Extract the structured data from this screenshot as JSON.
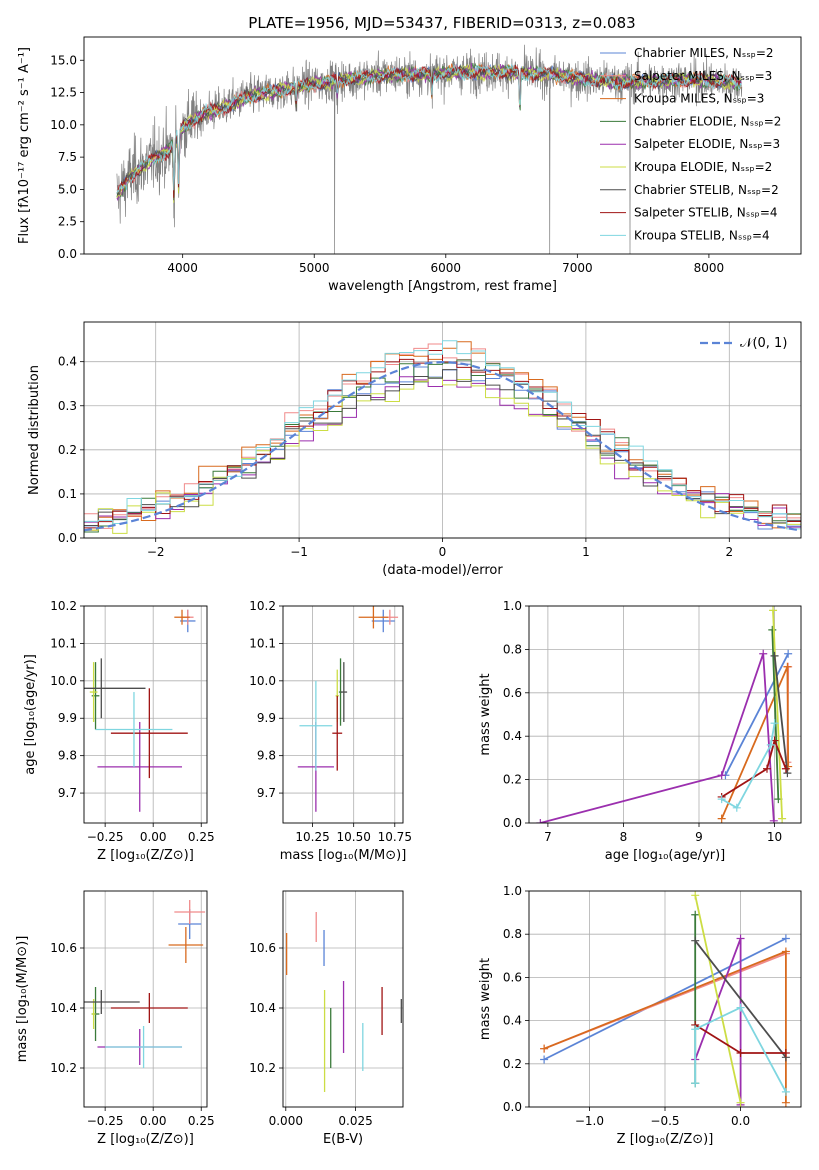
{
  "figure": {
    "title": "PLATE=1956, MJD=53437, FIBERID=0313, z=0.083"
  },
  "colors": {
    "chabrier_miles": "#5b84d6",
    "salpeter_miles": "#f08a8a",
    "kroupa_miles": "#d86a1e",
    "chabrier_elodie": "#3a7a3a",
    "salpeter_elodie": "#9b2fae",
    "kroupa_elodie": "#ccdd44",
    "chabrier_stelib": "#4d4d4d",
    "salpeter_stelib": "#a01414",
    "kroupa_stelib": "#7fd6e0",
    "data": "#808080",
    "normal": "#5b84d6"
  },
  "chart_data": [
    {
      "id": "spectrum",
      "type": "line",
      "xlabel": "wavelength [Angstrom, rest frame]",
      "ylabel": "Flux [fλ10⁻¹⁷ erg cm⁻² s⁻¹ A⁻¹]",
      "xlim": [
        3250,
        8700
      ],
      "ylim": [
        0,
        16.8
      ],
      "xticks": [
        4000,
        5000,
        6000,
        7000,
        8000
      ],
      "yticks": [
        0.0,
        2.5,
        5.0,
        7.5,
        10.0,
        12.5,
        15.0
      ],
      "grid": false,
      "legend_loc": "right",
      "legend": [
        "Chabrier MILES, N_SSP=2",
        "Salpeter MILES, N_SSP=3",
        "Kroupa MILES, N_SSP=3",
        "Chabrier ELODIE, N_SSP=2",
        "Salpeter ELODIE, N_SSP=3",
        "Kroupa ELODIE, N_SSP=2",
        "Chabrier STELIB, N_SSP=2",
        "Salpeter STELIB, N_SSP=4",
        "Kroupa STELIB, N_SSP=4"
      ],
      "continuum": {
        "x": [
          3500,
          3600,
          3700,
          3800,
          3900,
          4000,
          4100,
          4200,
          4300,
          4400,
          4500,
          4600,
          4700,
          4800,
          4900,
          5000,
          5100,
          5200,
          5400,
          5600,
          5800,
          6000,
          6200,
          6400,
          6600,
          6800,
          7000,
          7200,
          7400,
          7600,
          7800,
          8000,
          8200
        ],
        "y": [
          4.5,
          6.0,
          6.8,
          7.5,
          8.0,
          9.8,
          10.5,
          11.0,
          11.3,
          11.8,
          12.2,
          12.4,
          12.6,
          12.8,
          13.0,
          13.2,
          13.3,
          13.5,
          13.7,
          13.9,
          13.9,
          14.0,
          14.1,
          14.1,
          14.0,
          13.9,
          13.6,
          13.4,
          13.3,
          13.4,
          13.5,
          13.4,
          13.3
        ]
      },
      "features": [
        {
          "x": 3934,
          "y": 4.0
        },
        {
          "x": 3969,
          "y": 5.0
        },
        {
          "x": 4862,
          "y": 11.5
        },
        {
          "x": 5175,
          "y": 12.3
        },
        {
          "x": 5893,
          "y": 12.5
        },
        {
          "x": 6563,
          "y": 11.0
        }
      ],
      "gaps": [
        {
          "x": 5155
        },
        {
          "x": 6790
        },
        {
          "x": 7400
        }
      ]
    },
    {
      "id": "residuals",
      "type": "histogram",
      "xlabel": "(data-model)/error",
      "ylabel": "Normed distribution",
      "xlim": [
        -2.5,
        2.5
      ],
      "ylim": [
        0,
        0.49
      ],
      "xticks": [
        -2,
        -1,
        0,
        1,
        2
      ],
      "yticks": [
        0.0,
        0.1,
        0.2,
        0.3,
        0.4
      ],
      "grid": true,
      "legend_loc": "upper right",
      "legend": [
        "𝒩(0, 1)"
      ],
      "bin_width": 0.1,
      "reference_curve": "normal(0,1)"
    },
    {
      "id": "Z-age",
      "type": "errorbar",
      "xlabel": "Z [log₁₀(Z/Z⊙)]",
      "ylabel": "age  [log₁₀(age/yr)]",
      "xlim": [
        -0.36,
        0.28
      ],
      "ylim": [
        9.62,
        10.2
      ],
      "xticks": [
        -0.25,
        0.0,
        0.25
      ],
      "xticklabels": [
        "−0.25",
        "0.00",
        "0.25"
      ],
      "yticks": [
        9.7,
        9.8,
        9.9,
        10.0,
        10.1,
        10.2
      ],
      "grid": true,
      "points": [
        {
          "model": "chabrier_miles",
          "x": 0.18,
          "y": 10.16,
          "xerr": 0.04,
          "yerr": 0.03
        },
        {
          "model": "salpeter_miles",
          "x": 0.18,
          "y": 10.17,
          "xerr": 0.03,
          "yerr": 0.02
        },
        {
          "model": "kroupa_miles",
          "x": 0.15,
          "y": 10.17,
          "xerr": 0.04,
          "yerr": 0.02
        },
        {
          "model": "chabrier_elodie",
          "x": -0.3,
          "y": 9.96,
          "xerr": 0.02,
          "yerr": 0.09
        },
        {
          "model": "salpeter_elodie",
          "x": -0.07,
          "y": 9.77,
          "xerr": 0.22,
          "yerr": 0.12
        },
        {
          "model": "kroupa_elodie",
          "x": -0.31,
          "y": 9.97,
          "xerr": 0.02,
          "yerr": 0.08
        },
        {
          "model": "chabrier_stelib",
          "x": -0.27,
          "y": 9.98,
          "xerr": 0.23,
          "yerr": 0.08
        },
        {
          "model": "salpeter_stelib",
          "x": -0.02,
          "y": 9.86,
          "xerr": 0.2,
          "yerr": 0.12
        },
        {
          "model": "kroupa_stelib",
          "x": -0.1,
          "y": 9.87,
          "xerr": 0.2,
          "yerr": 0.1
        }
      ]
    },
    {
      "id": "mass-age",
      "type": "errorbar",
      "xlabel": "mass [log₁₀(M/M⊙)]",
      "ylabel": "",
      "xlim": [
        10.07,
        10.8
      ],
      "ylim": [
        9.62,
        10.2
      ],
      "xticks": [
        10.25,
        10.5,
        10.75
      ],
      "xticklabels": [
        "10.25",
        "10.50",
        "10.75"
      ],
      "yticks": [
        9.7,
        9.8,
        9.9,
        10.0,
        10.1,
        10.2
      ],
      "grid": true,
      "points": [
        {
          "model": "chabrier_miles",
          "x": 10.68,
          "y": 10.16,
          "xerr": 0.07,
          "yerr": 0.03
        },
        {
          "model": "salpeter_miles",
          "x": 10.72,
          "y": 10.17,
          "xerr": 0.05,
          "yerr": 0.02
        },
        {
          "model": "kroupa_miles",
          "x": 10.62,
          "y": 10.17,
          "xerr": 0.09,
          "yerr": 0.03
        },
        {
          "model": "chabrier_elodie",
          "x": 10.42,
          "y": 9.97,
          "xerr": 0.01,
          "yerr": 0.09
        },
        {
          "model": "salpeter_elodie",
          "x": 10.27,
          "y": 9.77,
          "xerr": 0.11,
          "yerr": 0.12
        },
        {
          "model": "kroupa_elodie",
          "x": 10.4,
          "y": 9.96,
          "xerr": 0.01,
          "yerr": 0.07
        },
        {
          "model": "chabrier_stelib",
          "x": 10.44,
          "y": 9.97,
          "xerr": 0.02,
          "yerr": 0.08
        },
        {
          "model": "salpeter_stelib",
          "x": 10.4,
          "y": 9.86,
          "xerr": 0.03,
          "yerr": 0.1
        },
        {
          "model": "kroupa_stelib",
          "x": 10.27,
          "y": 9.88,
          "xerr": 0.1,
          "yerr": 0.12
        }
      ]
    },
    {
      "id": "age-weight",
      "type": "line",
      "xlabel": "age  [log₁₀(age/yr)]",
      "ylabel": "mass weight",
      "xlim": [
        6.75,
        10.35
      ],
      "ylim": [
        0,
        1.0
      ],
      "xticks": [
        7,
        8,
        9,
        10
      ],
      "yticks": [
        0.0,
        0.2,
        0.4,
        0.6,
        0.8,
        1.0
      ],
      "grid": true,
      "series": [
        {
          "model": "chabrier_miles",
          "x": [
            9.35,
            10.18
          ],
          "y": [
            0.22,
            0.78
          ]
        },
        {
          "model": "salpeter_miles",
          "x": [
            10.17,
            10.18
          ],
          "y": [
            0.28,
            0.72
          ]
        },
        {
          "model": "kroupa_miles",
          "x": [
            9.3,
            10.17,
            10.18
          ],
          "y": [
            0.02,
            0.72,
            0.26
          ]
        },
        {
          "model": "chabrier_elodie",
          "x": [
            9.97,
            10.05
          ],
          "y": [
            0.89,
            0.11
          ]
        },
        {
          "model": "salpeter_elodie",
          "x": [
            6.9,
            9.3,
            9.85,
            9.99
          ],
          "y": [
            0.0,
            0.22,
            0.78,
            0.01
          ]
        },
        {
          "model": "kroupa_elodie",
          "x": [
            9.98,
            10.1
          ],
          "y": [
            0.98,
            0.02
          ]
        },
        {
          "model": "chabrier_stelib",
          "x": [
            10.0,
            10.17
          ],
          "y": [
            0.77,
            0.23
          ]
        },
        {
          "model": "salpeter_stelib",
          "x": [
            9.3,
            9.9,
            10.0,
            10.15
          ],
          "y": [
            0.12,
            0.25,
            0.38,
            0.25
          ]
        },
        {
          "model": "kroupa_stelib",
          "x": [
            9.3,
            9.5,
            9.95,
            10.0
          ],
          "y": [
            0.11,
            0.07,
            0.36,
            0.46
          ]
        }
      ]
    },
    {
      "id": "Z-mass",
      "type": "errorbar",
      "xlabel": "Z [log₁₀(Z/Z⊙)]",
      "ylabel": "mass [log₁₀(M/M⊙)]",
      "xlim": [
        -0.36,
        0.28
      ],
      "ylim": [
        10.07,
        10.79
      ],
      "xticks": [
        -0.25,
        0.0,
        0.25
      ],
      "xticklabels": [
        "−0.25",
        "0.00",
        "0.25"
      ],
      "yticks": [
        10.2,
        10.4,
        10.6
      ],
      "grid": true,
      "points": [
        {
          "model": "chabrier_miles",
          "x": 0.19,
          "y": 10.68,
          "xerr": 0.06,
          "yerr": 0.05
        },
        {
          "model": "salpeter_miles",
          "x": 0.19,
          "y": 10.72,
          "xerr": 0.08,
          "yerr": 0.04
        },
        {
          "model": "kroupa_miles",
          "x": 0.17,
          "y": 10.61,
          "xerr": 0.09,
          "yerr": 0.06
        },
        {
          "model": "chabrier_elodie",
          "x": -0.3,
          "y": 10.38,
          "xerr": 0.02,
          "yerr": 0.09
        },
        {
          "model": "salpeter_elodie",
          "x": -0.07,
          "y": 10.27,
          "xerr": 0.22,
          "yerr": 0.06
        },
        {
          "model": "kroupa_elodie",
          "x": -0.31,
          "y": 10.38,
          "xerr": 0.01,
          "yerr": 0.05
        },
        {
          "model": "chabrier_stelib",
          "x": -0.27,
          "y": 10.42,
          "xerr": 0.2,
          "yerr": 0.04
        },
        {
          "model": "salpeter_stelib",
          "x": -0.02,
          "y": 10.4,
          "xerr": 0.2,
          "yerr": 0.05
        },
        {
          "model": "kroupa_stelib",
          "x": -0.05,
          "y": 10.27,
          "xerr": 0.2,
          "yerr": 0.07
        }
      ]
    },
    {
      "id": "EBV-mass",
      "type": "errorbar",
      "xlabel": "E(B-V)",
      "ylabel": "",
      "xlim": [
        -0.001,
        0.042
      ],
      "ylim": [
        10.07,
        10.79
      ],
      "xticks": [
        0.0,
        0.025
      ],
      "xticklabels": [
        "0.000",
        "0.025"
      ],
      "yticks": [
        10.2,
        10.4,
        10.6
      ],
      "grid": true,
      "points": [
        {
          "model": "chabrier_miles",
          "x": 0.0137,
          "y": 10.6,
          "xerr": 0,
          "yerr": 0.06
        },
        {
          "model": "salpeter_miles",
          "x": 0.0109,
          "y": 10.67,
          "xerr": 0,
          "yerr": 0.05
        },
        {
          "model": "kroupa_miles",
          "x": 0.0003,
          "y": 10.58,
          "xerr": 0,
          "yerr": 0.07
        },
        {
          "model": "chabrier_elodie",
          "x": 0.0161,
          "y": 10.3,
          "xerr": 0,
          "yerr": 0.1
        },
        {
          "model": "salpeter_elodie",
          "x": 0.0207,
          "y": 10.37,
          "xerr": 0,
          "yerr": 0.12
        },
        {
          "model": "kroupa_elodie",
          "x": 0.0139,
          "y": 10.29,
          "xerr": 0,
          "yerr": 0.17
        },
        {
          "model": "chabrier_stelib",
          "x": 0.0414,
          "y": 10.39,
          "xerr": 0,
          "yerr": 0.04
        },
        {
          "model": "salpeter_stelib",
          "x": 0.0345,
          "y": 10.39,
          "xerr": 0,
          "yerr": 0.08
        },
        {
          "model": "kroupa_stelib",
          "x": 0.0276,
          "y": 10.27,
          "xerr": 0,
          "yerr": 0.08
        }
      ]
    },
    {
      "id": "Z-weight",
      "type": "line",
      "xlabel": "Z [log₁₀(Z/Z⊙)]",
      "ylabel": "mass weight",
      "xlim": [
        -1.4,
        0.4
      ],
      "ylim": [
        0,
        1.0
      ],
      "xticks": [
        -1.0,
        -0.5,
        0.0
      ],
      "xticklabels": [
        "−1.0",
        "−0.5",
        "0.0"
      ],
      "yticks": [
        0.0,
        0.2,
        0.4,
        0.6,
        0.8,
        1.0
      ],
      "grid": true,
      "series": [
        {
          "model": "chabrier_miles",
          "x": [
            -1.3,
            0.3
          ],
          "y": [
            0.22,
            0.78
          ]
        },
        {
          "model": "salpeter_miles",
          "x": [
            -1.3,
            0.3
          ],
          "y": [
            0.27,
            0.71
          ]
        },
        {
          "model": "kroupa_miles",
          "x": [
            -1.3,
            0.3,
            0.3
          ],
          "y": [
            0.27,
            0.72,
            0.02
          ]
        },
        {
          "model": "chabrier_elodie",
          "x": [
            -0.3,
            -0.3
          ],
          "y": [
            0.89,
            0.11
          ]
        },
        {
          "model": "salpeter_elodie",
          "x": [
            -0.3,
            0.0,
            0.0
          ],
          "y": [
            0.22,
            0.78,
            0.01
          ]
        },
        {
          "model": "kroupa_elodie",
          "x": [
            -0.3,
            0.0
          ],
          "y": [
            0.98,
            0.02
          ]
        },
        {
          "model": "chabrier_stelib",
          "x": [
            -0.3,
            0.3
          ],
          "y": [
            0.77,
            0.23
          ]
        },
        {
          "model": "salpeter_stelib",
          "x": [
            -0.3,
            0.0,
            0.3
          ],
          "y": [
            0.38,
            0.25,
            0.25
          ]
        },
        {
          "model": "kroupa_stelib",
          "x": [
            -0.3,
            -0.3,
            0.0,
            0.3
          ],
          "y": [
            0.11,
            0.36,
            0.46,
            0.07
          ]
        }
      ]
    }
  ]
}
